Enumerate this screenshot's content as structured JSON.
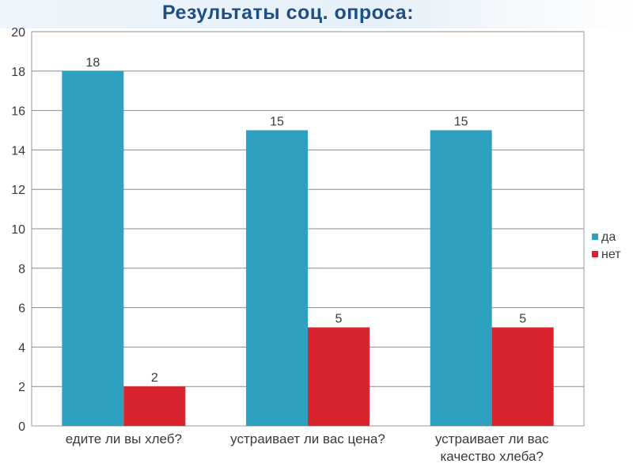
{
  "title": "Результаты соц. опроса:",
  "chart_data": {
    "type": "bar",
    "title": "Результаты соц. опроса:",
    "categories": [
      [
        "едите ли вы хлеб?"
      ],
      [
        "устраивает ли вас цена?"
      ],
      [
        "устраивает ли вас",
        "качество хлеба?"
      ]
    ],
    "series": [
      {
        "name": "да",
        "color": "#2ea0c0",
        "values": [
          18,
          15,
          15
        ]
      },
      {
        "name": "нет",
        "color": "#d9232d",
        "values": [
          2,
          5,
          5
        ]
      }
    ],
    "ylim": [
      0,
      20
    ],
    "yticks": [
      0,
      2,
      4,
      6,
      8,
      10,
      12,
      14,
      16,
      18,
      20
    ],
    "grid": true,
    "legend": "right",
    "data_labels": true
  }
}
